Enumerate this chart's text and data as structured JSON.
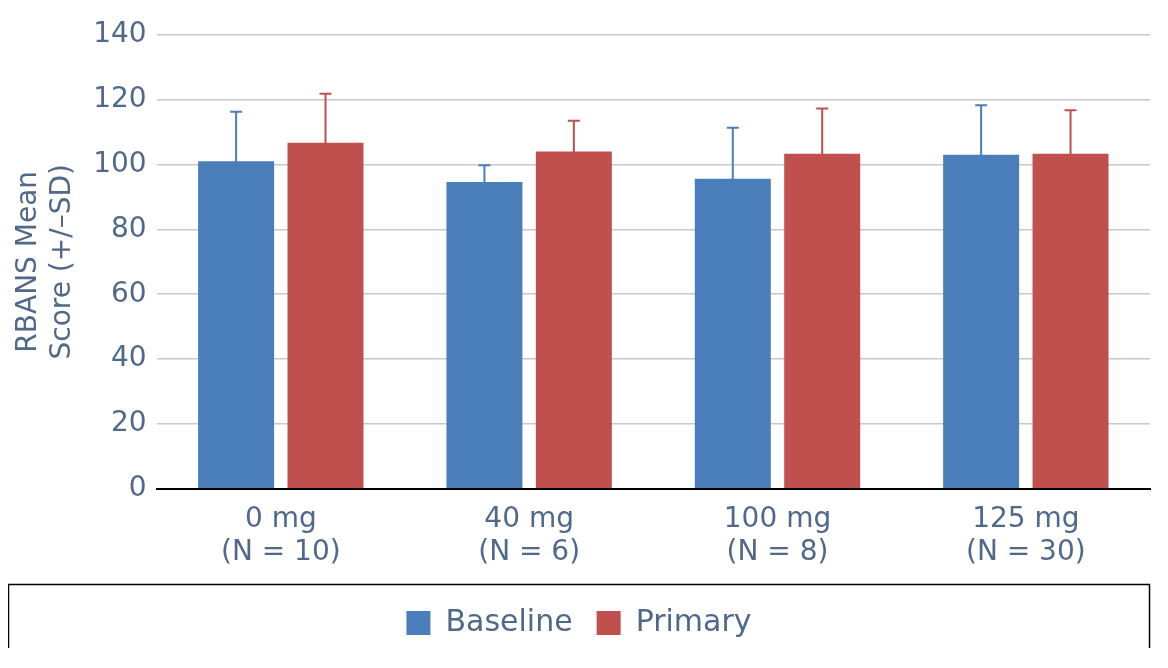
{
  "chart_data": {
    "type": "bar",
    "ylabel": "RBANS Mean Score (+/–SD)",
    "categories": [
      "0 mg\n(N = 10)",
      "40 mg\n(N = 6)",
      "100 mg\n(N = 8)",
      "125 mg\n(N = 30)"
    ],
    "series": [
      {
        "name": "Baseline",
        "color": "#4a7ebb",
        "values": [
          101,
          94.6,
          95.6,
          103
        ],
        "errors": [
          15.3,
          5.2,
          15.7,
          15.3
        ]
      },
      {
        "name": "Primary",
        "color": "#c0504d",
        "values": [
          106.7,
          104,
          103.3,
          103.3
        ],
        "errors": [
          15.1,
          9.5,
          14,
          13.4
        ]
      }
    ],
    "ylim": [
      0,
      140
    ],
    "yticks": [
      0,
      20,
      40,
      60,
      80,
      100,
      120,
      140
    ],
    "grid": "y",
    "legend": "bottom"
  }
}
